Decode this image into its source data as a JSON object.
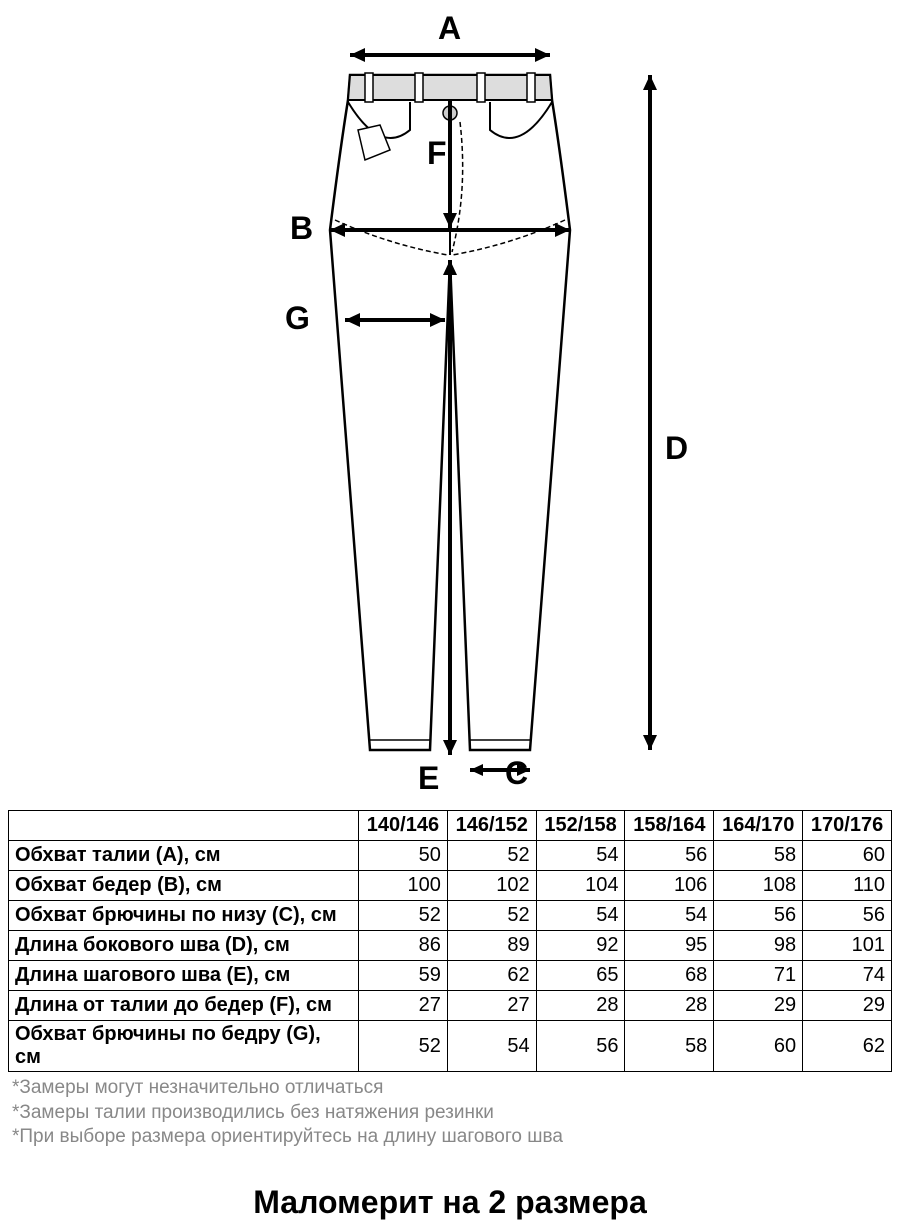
{
  "diagram": {
    "labels": {
      "A": "A",
      "B": "B",
      "C": "C",
      "D": "D",
      "E": "E",
      "F": "F",
      "G": "G"
    },
    "stroke_color": "#000000",
    "fill_color": "#ffffff",
    "shade_color": "#dddddd",
    "stroke_width": 2,
    "label_fontsize": 32,
    "label_fontweight": "bold"
  },
  "table": {
    "columns": [
      "140/146",
      "146/152",
      "152/158",
      "158/164",
      "164/170",
      "170/176"
    ],
    "rows": [
      {
        "label": "Обхват талии (А), см",
        "values": [
          50,
          52,
          54,
          56,
          58,
          60
        ]
      },
      {
        "label": "Обхват бедер (В), см",
        "values": [
          100,
          102,
          104,
          106,
          108,
          110
        ]
      },
      {
        "label": "Обхват брючины по низу (С), см",
        "values": [
          52,
          52,
          54,
          54,
          56,
          56
        ]
      },
      {
        "label": "Длина бокового шва (D), см",
        "values": [
          86,
          89,
          92,
          95,
          98,
          101
        ]
      },
      {
        "label": "Длина шагового шва (Е), см",
        "values": [
          59,
          62,
          65,
          68,
          71,
          74
        ]
      },
      {
        "label": "Длина от талии до бедер (F), см",
        "values": [
          27,
          27,
          28,
          28,
          29,
          29
        ]
      },
      {
        "label": "Обхват брючины по бедру (G), см",
        "values": [
          52,
          54,
          56,
          58,
          60,
          62
        ]
      }
    ],
    "header_empty": "",
    "border_color": "#000000",
    "fontsize": 20,
    "label_col_width": 350,
    "value_col_width": 88
  },
  "notes": [
    "*Замеры могут незначительно отличаться",
    "*Замеры талии производились без натяжения резинки",
    "*При выборе размера ориентируйтесь на длину шагового шва"
  ],
  "fit_note": "Маломерит на 2 размера",
  "colors": {
    "text": "#000000",
    "note_text": "#888888",
    "background": "#ffffff"
  }
}
